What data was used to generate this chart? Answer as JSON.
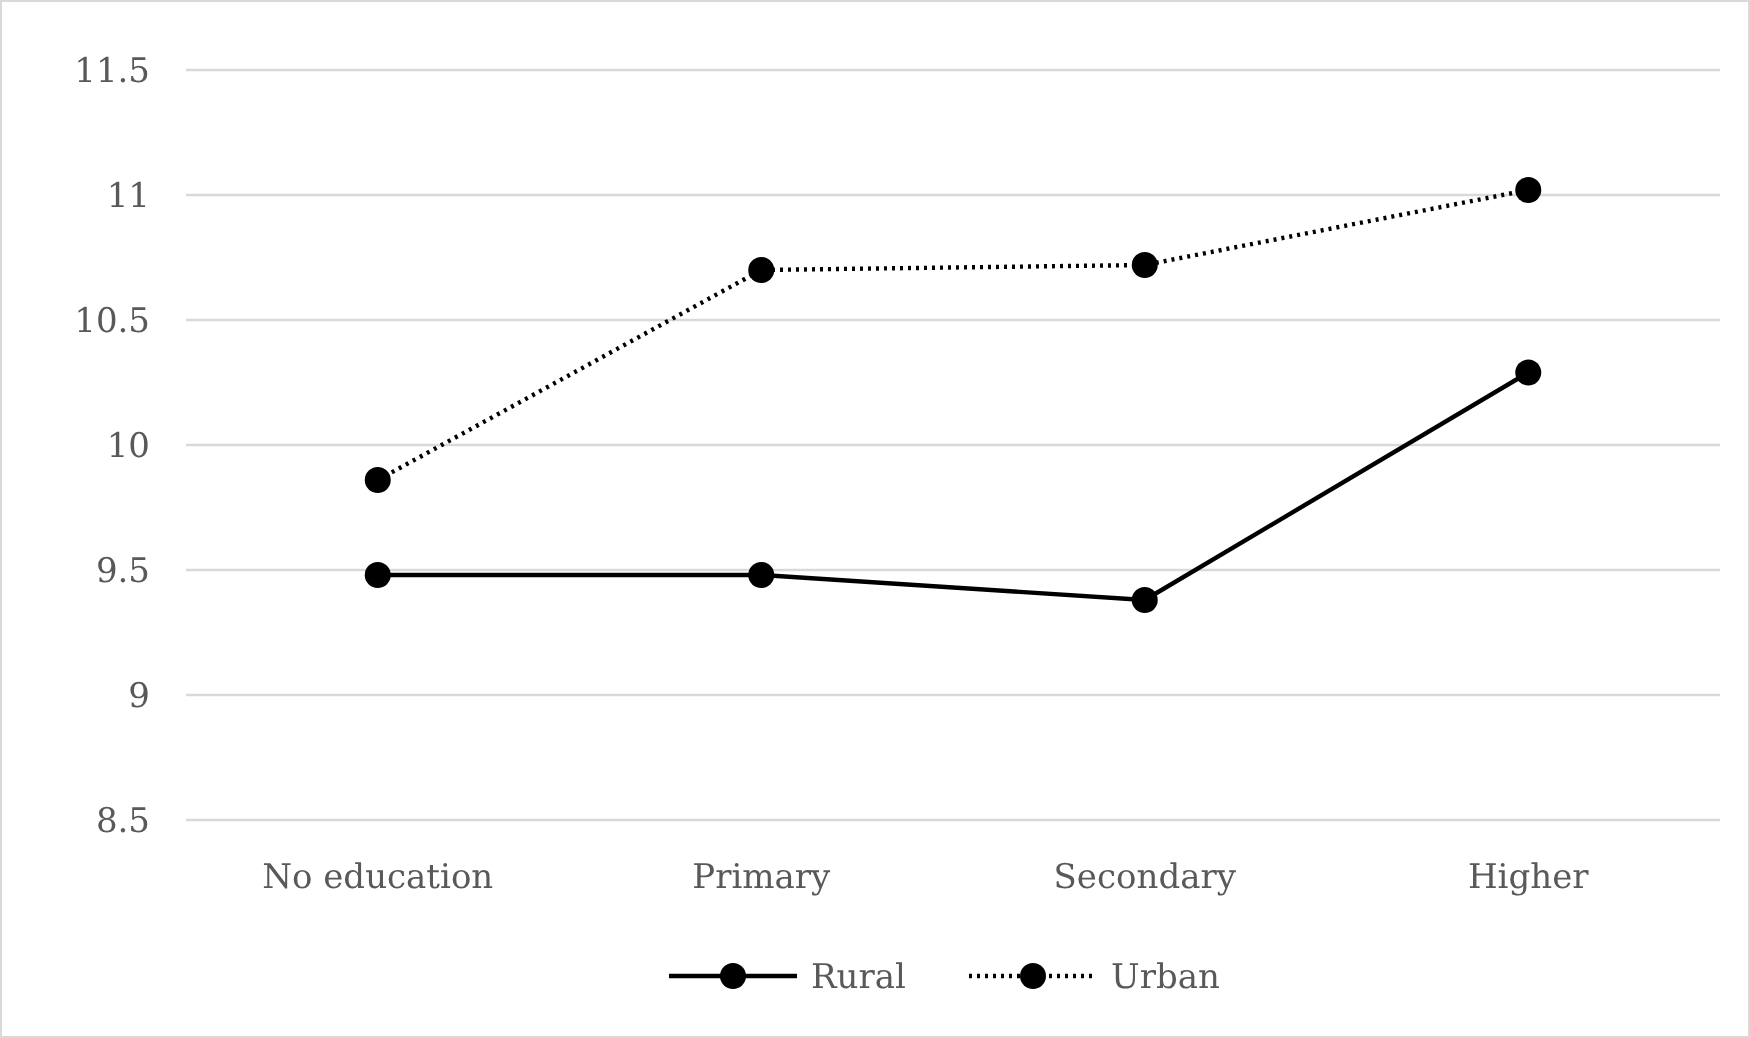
{
  "chart_data": {
    "type": "line",
    "categories": [
      "No education",
      "Primary",
      "Secondary",
      "Higher"
    ],
    "series": [
      {
        "name": "Rural",
        "color": "#000000",
        "values": [
          9.48,
          9.48,
          9.38,
          10.29
        ],
        "line_style": "solid"
      },
      {
        "name": "Urban",
        "color": "#000000",
        "values": [
          9.86,
          10.7,
          10.72,
          11.02
        ],
        "line_style": "dotted"
      }
    ],
    "ylim": [
      8.5,
      11.5
    ],
    "yticks": [
      8.5,
      9,
      9.5,
      10,
      10.5,
      11,
      11.5
    ],
    "grid": "y",
    "legend": "bottom",
    "marker": "circle"
  }
}
